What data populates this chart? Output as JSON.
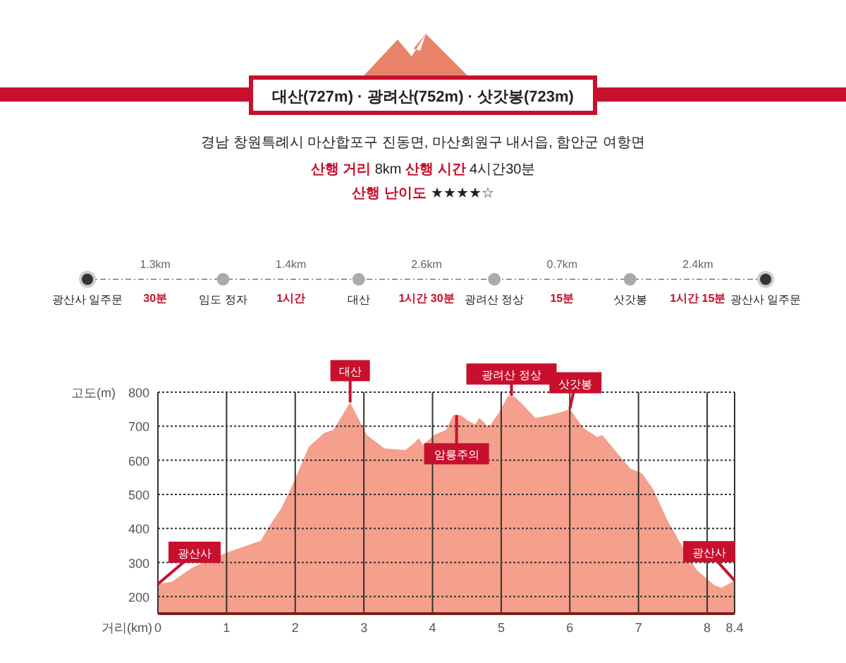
{
  "chart_data": [
    {
      "type": "other",
      "title": "대산(727m) · 광려산(752m) · 삿갓봉(723m)",
      "subtitle": "경남 창원특례시 마산합포구 진동면, 마산회원구 내서읍, 함안군 여항면",
      "categories": [
        "광산사 일주문",
        "임도 정자",
        "대산",
        "광려산 정상",
        "삿갓봉",
        "광산사 일주문"
      ],
      "annotations": [
        "산행 거리",
        "8km",
        "산행 시간",
        "4시간30분",
        "산행 난이도",
        "★★★★☆",
        "1.3km",
        "1.4km",
        "2.6km",
        "0.7km",
        "2.4km",
        "30분",
        "1시간",
        "1시간 30분",
        "15분",
        "1시간 15분"
      ]
    },
    {
      "type": "area",
      "xlabel": "거리(km)",
      "ylabel": "고도(m)",
      "color": "#f4a08c",
      "grid": true,
      "x": [
        0,
        0.2,
        0.5,
        1.0,
        1.5,
        1.6,
        1.8,
        1.95,
        2.2,
        2.42,
        2.56,
        2.8,
        3.04,
        3.3,
        3.6,
        3.73,
        3.8,
        3.86,
        4.03,
        4.2,
        4.3,
        4.41,
        4.51,
        4.62,
        4.68,
        4.82,
        4.96,
        5.1,
        5.2,
        5.34,
        5.5,
        5.71,
        5.92,
        6.0,
        6.19,
        6.4,
        6.47,
        6.67,
        6.88,
        7.05,
        7.22,
        7.42,
        7.63,
        7.84,
        8.11,
        8.21,
        8.4
      ],
      "values": [
        237,
        243,
        285,
        329,
        364,
        400,
        460,
        522,
        640,
        680,
        690,
        770,
        675,
        635,
        630,
        650,
        665,
        645,
        675,
        690,
        733,
        733,
        717,
        705,
        725,
        697,
        738,
        789,
        786,
        758,
        724,
        733,
        744,
        751,
        696,
        668,
        675,
        626,
        576,
        562,
        513,
        424,
        350,
        280,
        233,
        226,
        247
      ],
      "xlim": [
        0,
        8.4
      ],
      "xticks": [
        0,
        1,
        2,
        3,
        4,
        5,
        6,
        7,
        8,
        8.4
      ],
      "ylim": [
        150,
        800
      ],
      "yticks": [
        200,
        300,
        400,
        500,
        600,
        700,
        800
      ],
      "annotations": [
        {
          "text": "광산사",
          "x": 0,
          "y": 237
        },
        {
          "text": "대산",
          "x": 2.8,
          "y": 770
        },
        {
          "text": "암릉주의",
          "x": 4.35,
          "y": 733
        },
        {
          "text": "광려산 정상",
          "x": 5.15,
          "y": 789
        },
        {
          "text": "삿갓봉",
          "x": 6.0,
          "y": 751
        },
        {
          "text": "광산사",
          "x": 8.4,
          "y": 247
        }
      ]
    }
  ]
}
